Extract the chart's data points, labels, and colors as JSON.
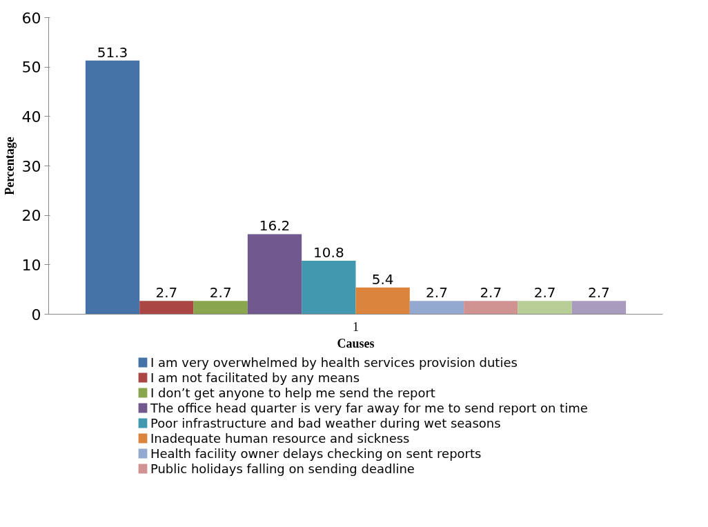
{
  "chart_data": {
    "type": "bar",
    "xlabel": "Causes",
    "ylabel": "Percentage",
    "categories": [
      "1"
    ],
    "series": [
      {
        "name": "I am very overwhelmed by health services provision duties",
        "color": "#4572a7",
        "values": [
          51.3
        ]
      },
      {
        "name": "I am not facilitated by any means",
        "color": "#aa4643",
        "values": [
          2.7
        ]
      },
      {
        "name": "I don’t get anyone to help me send the report",
        "color": "#89a54e",
        "values": [
          2.7
        ]
      },
      {
        "name": "The office head quarter is very far away for me to send report on time",
        "color": "#71588f",
        "values": [
          16.2
        ]
      },
      {
        "name": "Poor infrastructure and bad weather during wet seasons",
        "color": "#4198af",
        "values": [
          10.8
        ]
      },
      {
        "name": "Inadequate human resource and sickness",
        "color": "#db843d",
        "values": [
          5.4
        ]
      },
      {
        "name": "Health facility owner delays checking on sent reports",
        "color": "#93a9cf",
        "values": [
          2.7
        ]
      },
      {
        "name": "Public holidays falling on sending deadline",
        "color": "#d19392",
        "values": [
          2.7
        ]
      },
      {
        "color": "#b9cd96",
        "values": [
          2.7
        ]
      },
      {
        "color": "#a99bbd",
        "values": [
          2.7
        ]
      }
    ],
    "ylim": [
      0,
      60
    ],
    "yticks": [
      0,
      10,
      20,
      30,
      40,
      50,
      60
    ],
    "data_labels": true,
    "legend": "bottom"
  }
}
